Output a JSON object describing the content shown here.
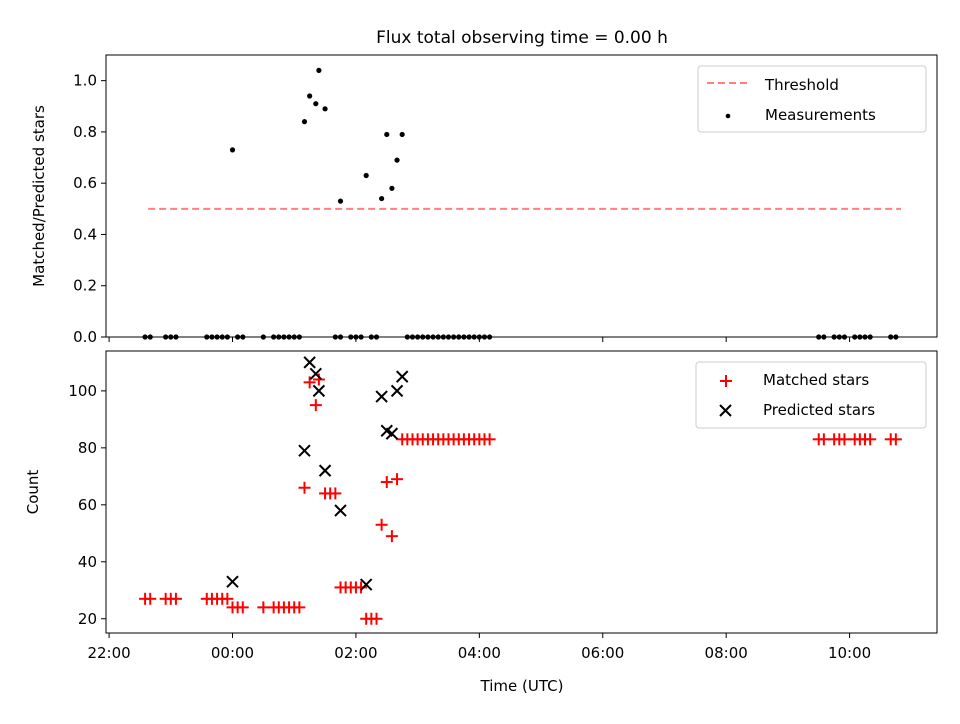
{
  "chart_data": [
    {
      "type": "scatter",
      "title": "Flux total observing time = 0.00 h",
      "xlabel": "",
      "ylabel": "Matched/Predicted stars",
      "ylim": [
        0,
        1.1
      ],
      "yticks": [
        0.0,
        0.2,
        0.4,
        0.6,
        0.8,
        1.0
      ],
      "ytick_labels": [
        "0.0",
        "0.2",
        "0.4",
        "0.6",
        "0.8",
        "1.0"
      ],
      "legend_position": "top-right",
      "threshold": {
        "name": "Threshold",
        "color": "#ff7f7f",
        "style": "dashed",
        "y": 0.5,
        "x_start": "22:38",
        "x_end": "10:50"
      },
      "series": [
        {
          "name": "Measurements",
          "color": "#000000",
          "marker": "dot",
          "points": [
            [
              "00:00",
              0.73
            ],
            [
              "01:10",
              0.84
            ],
            [
              "01:15",
              0.94
            ],
            [
              "01:21",
              0.91
            ],
            [
              "01:24",
              1.04
            ],
            [
              "01:30",
              0.89
            ],
            [
              "01:45",
              0.53
            ],
            [
              "02:10",
              0.63
            ],
            [
              "02:25",
              0.54
            ],
            [
              "02:30",
              0.79
            ],
            [
              "02:35",
              0.58
            ],
            [
              "02:40",
              0.69
            ],
            [
              "02:45",
              0.79
            ],
            [
              "22:35",
              0
            ],
            [
              "22:40",
              0
            ],
            [
              "22:55",
              0
            ],
            [
              "23:00",
              0
            ],
            [
              "23:05",
              0
            ],
            [
              "23:35",
              0
            ],
            [
              "23:40",
              0
            ],
            [
              "23:45",
              0
            ],
            [
              "23:50",
              0
            ],
            [
              "23:55",
              0
            ],
            [
              "00:05",
              0
            ],
            [
              "00:10",
              0
            ],
            [
              "00:30",
              0
            ],
            [
              "00:40",
              0
            ],
            [
              "00:45",
              0
            ],
            [
              "00:50",
              0
            ],
            [
              "00:55",
              0
            ],
            [
              "01:00",
              0
            ],
            [
              "01:05",
              0
            ],
            [
              "01:40",
              0
            ],
            [
              "01:45",
              0
            ],
            [
              "01:55",
              0
            ],
            [
              "02:00",
              0
            ],
            [
              "02:05",
              0
            ],
            [
              "02:15",
              0
            ],
            [
              "02:20",
              0
            ],
            [
              "02:50",
              0
            ],
            [
              "02:55",
              0
            ],
            [
              "03:00",
              0
            ],
            [
              "03:05",
              0
            ],
            [
              "03:10",
              0
            ],
            [
              "03:15",
              0
            ],
            [
              "03:20",
              0
            ],
            [
              "03:25",
              0
            ],
            [
              "03:30",
              0
            ],
            [
              "03:35",
              0
            ],
            [
              "03:40",
              0
            ],
            [
              "03:45",
              0
            ],
            [
              "03:50",
              0
            ],
            [
              "03:55",
              0
            ],
            [
              "04:00",
              0
            ],
            [
              "04:05",
              0
            ],
            [
              "04:10",
              0
            ],
            [
              "09:30",
              0
            ],
            [
              "09:35",
              0
            ],
            [
              "09:45",
              0
            ],
            [
              "09:50",
              0
            ],
            [
              "09:55",
              0
            ],
            [
              "10:05",
              0
            ],
            [
              "10:10",
              0
            ],
            [
              "10:15",
              0
            ],
            [
              "10:20",
              0
            ],
            [
              "10:40",
              0
            ],
            [
              "10:45",
              0
            ]
          ]
        }
      ]
    },
    {
      "type": "scatter",
      "title": "",
      "xlabel": "Time (UTC)",
      "ylabel": "Count",
      "ylim": [
        15,
        114
      ],
      "yticks": [
        20,
        40,
        60,
        80,
        100
      ],
      "ytick_labels": [
        "20",
        "40",
        "60",
        "80",
        "100"
      ],
      "xticks": [
        "22:00",
        "00:00",
        "02:00",
        "04:00",
        "06:00",
        "08:00",
        "10:00"
      ],
      "x_range": [
        "21:57",
        "11:25"
      ],
      "legend_position": "top-right",
      "series": [
        {
          "name": "Matched stars",
          "color": "#ff0000",
          "marker": "plus",
          "points": [
            [
              "22:35",
              27
            ],
            [
              "22:40",
              27
            ],
            [
              "22:55",
              27
            ],
            [
              "23:00",
              27
            ],
            [
              "23:05",
              27
            ],
            [
              "23:35",
              27
            ],
            [
              "23:40",
              27
            ],
            [
              "23:45",
              27
            ],
            [
              "23:50",
              27
            ],
            [
              "23:55",
              27
            ],
            [
              "00:00",
              24
            ],
            [
              "00:05",
              24
            ],
            [
              "00:10",
              24
            ],
            [
              "00:30",
              24
            ],
            [
              "00:40",
              24
            ],
            [
              "00:45",
              24
            ],
            [
              "00:50",
              24
            ],
            [
              "00:55",
              24
            ],
            [
              "01:00",
              24
            ],
            [
              "01:05",
              24
            ],
            [
              "01:10",
              66
            ],
            [
              "01:15",
              103
            ],
            [
              "01:21",
              95
            ],
            [
              "01:24",
              104
            ],
            [
              "01:30",
              64
            ],
            [
              "01:35",
              64
            ],
            [
              "01:40",
              64
            ],
            [
              "01:45",
              31
            ],
            [
              "01:50",
              31
            ],
            [
              "01:55",
              31
            ],
            [
              "02:00",
              31
            ],
            [
              "02:05",
              31
            ],
            [
              "02:10",
              20
            ],
            [
              "02:15",
              20
            ],
            [
              "02:20",
              20
            ],
            [
              "02:25",
              53
            ],
            [
              "02:30",
              68
            ],
            [
              "02:35",
              49
            ],
            [
              "02:40",
              69
            ],
            [
              "02:45",
              83
            ],
            [
              "02:50",
              83
            ],
            [
              "02:55",
              83
            ],
            [
              "03:00",
              83
            ],
            [
              "03:05",
              83
            ],
            [
              "03:10",
              83
            ],
            [
              "03:15",
              83
            ],
            [
              "03:20",
              83
            ],
            [
              "03:25",
              83
            ],
            [
              "03:30",
              83
            ],
            [
              "03:35",
              83
            ],
            [
              "03:40",
              83
            ],
            [
              "03:45",
              83
            ],
            [
              "03:50",
              83
            ],
            [
              "03:55",
              83
            ],
            [
              "04:00",
              83
            ],
            [
              "04:05",
              83
            ],
            [
              "04:10",
              83
            ],
            [
              "09:30",
              83
            ],
            [
              "09:35",
              83
            ],
            [
              "09:45",
              83
            ],
            [
              "09:50",
              83
            ],
            [
              "09:55",
              83
            ],
            [
              "10:05",
              83
            ],
            [
              "10:10",
              83
            ],
            [
              "10:15",
              83
            ],
            [
              "10:20",
              83
            ],
            [
              "10:40",
              83
            ],
            [
              "10:45",
              83
            ]
          ]
        },
        {
          "name": "Predicted stars",
          "color": "#000000",
          "marker": "x",
          "points": [
            [
              "00:00",
              33
            ],
            [
              "01:10",
              79
            ],
            [
              "01:15",
              110
            ],
            [
              "01:21",
              106
            ],
            [
              "01:24",
              100
            ],
            [
              "01:30",
              72
            ],
            [
              "01:45",
              58
            ],
            [
              "02:10",
              32
            ],
            [
              "02:25",
              98
            ],
            [
              "02:30",
              86
            ],
            [
              "02:35",
              85
            ],
            [
              "02:40",
              100
            ],
            [
              "02:45",
              105
            ]
          ]
        }
      ]
    }
  ]
}
